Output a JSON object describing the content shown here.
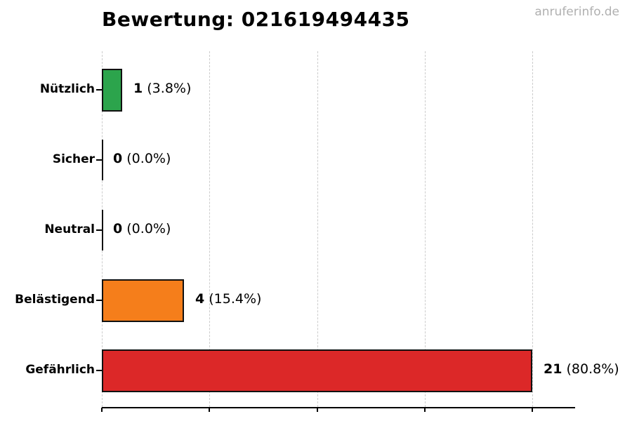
{
  "header": {
    "title": "Bewertung: 021619494435",
    "watermark": "anruferinfo.de"
  },
  "colors": {
    "green": "#2CA44C",
    "orange": "#F57E1B",
    "red": "#DC2828",
    "grid": "#cccccc",
    "bar_edge": "#111111",
    "axis": "#000000",
    "watermark": "#b0b0b0",
    "text": "#000000"
  },
  "chart_data": {
    "type": "bar",
    "orientation": "horizontal",
    "title": "Bewertung: 021619494435",
    "categories": [
      "Nützlich",
      "Sicher",
      "Neutral",
      "Belästigend",
      "Gefährlich"
    ],
    "values": [
      1,
      0,
      0,
      4,
      21
    ],
    "count_labels": [
      "1",
      "0",
      "0",
      "4",
      "21"
    ],
    "percent_labels": [
      "(3.8%)",
      "(0.0%)",
      "(0.0%)",
      "(15.4%)",
      "(80.8%)"
    ],
    "bar_colors": [
      "#2CA44C",
      null,
      null,
      "#F57E1B",
      "#DC2828"
    ],
    "xlim": [
      0,
      23.1
    ],
    "xticks": [
      0,
      5.25,
      10.5,
      15.75,
      21
    ],
    "xtick_labels_visible": false,
    "ylabel": "",
    "xlabel": "",
    "grid": "vertical-dashed",
    "legend": "none"
  }
}
